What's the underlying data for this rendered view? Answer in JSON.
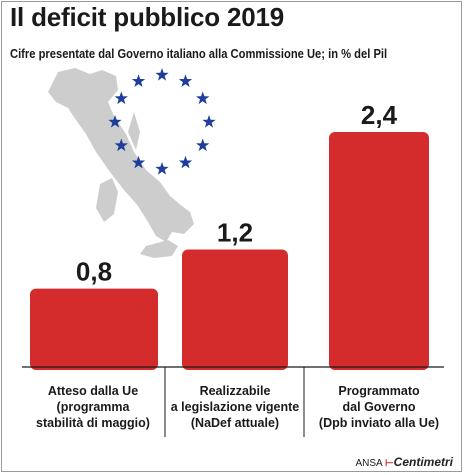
{
  "colors": {
    "bar": "#d42c2c",
    "map": "#cdcdcd",
    "stars": "#1e3e9a",
    "text": "#1a1a1a"
  },
  "credit": {
    "source": "ANSA",
    "brand_mark": "⊢",
    "brand": "Centimetri"
  },
  "chart_data": {
    "type": "bar",
    "title": "Il deficit pubblico 2019",
    "subtitle": "Cifre presentate dal Governo italiano alla Commissione Ue; in % del Pil",
    "categories": [
      {
        "main": "Atteso dalla Ue",
        "sub": [
          "(programma",
          "stabilità di maggio)"
        ]
      },
      {
        "main": "Realizzabile",
        "sub": [
          "a legislazione vigente",
          "(NaDef attuale)"
        ]
      },
      {
        "main": "Programmato",
        "sub": [
          "dal Governo",
          "(Dpb inviato alla Ue)"
        ]
      }
    ],
    "values": [
      0.8,
      1.2,
      2.4
    ],
    "value_labels": [
      "0,8",
      "1,2",
      "2,4"
    ],
    "ylim": [
      0,
      2.4
    ],
    "grid": false,
    "legend": "none",
    "decoration": {
      "map": "italy-map-icon",
      "stars": "eu-stars-icon",
      "star_count": 12
    }
  }
}
